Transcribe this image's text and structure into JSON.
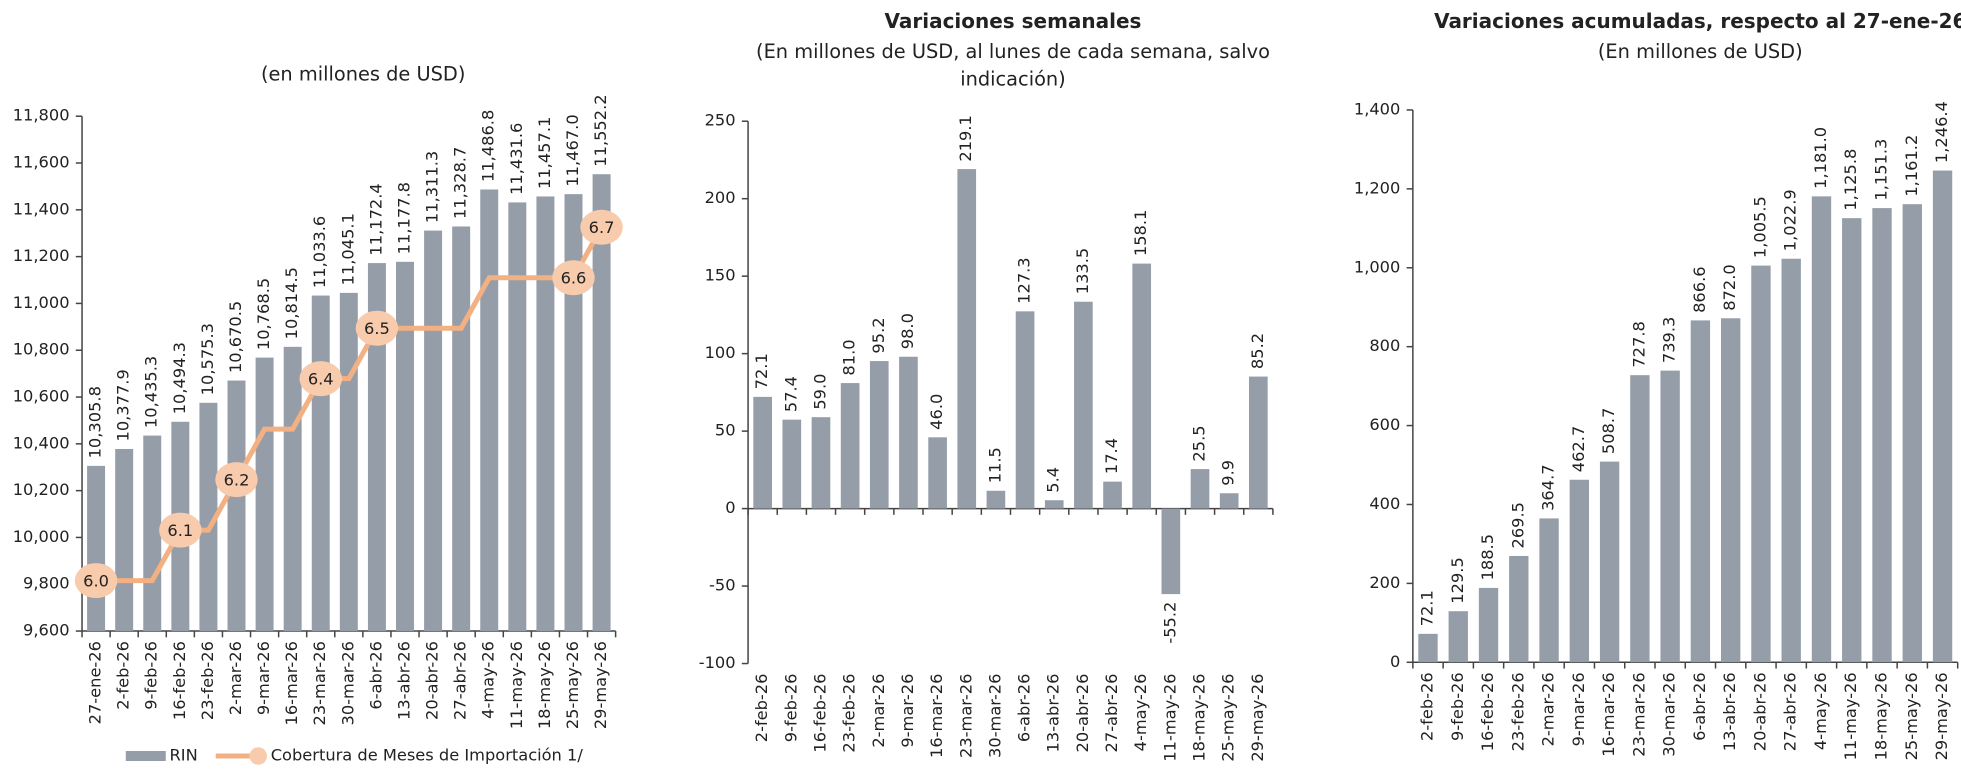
{
  "chart_data": [
    {
      "type": "bar",
      "title": "(en  millones de USD)",
      "categories": [
        "27-ene-26",
        "2-feb-26",
        "9-feb-26",
        "16-feb-26",
        "23-feb-26",
        "2-mar-26",
        "9-mar-26",
        "16-mar-26",
        "23-mar-26",
        "30-mar-26",
        "6-abr-26",
        "13-abr-26",
        "20-abr-26",
        "27-abr-26",
        "4-may-26",
        "11-may-26",
        "18-may-26",
        "25-may-26",
        "29-may-26"
      ],
      "series": [
        {
          "name": "RIN",
          "color": "#959ea8",
          "values": [
            10305.8,
            10377.9,
            10435.3,
            10494.3,
            10575.3,
            10670.5,
            10768.5,
            10814.5,
            11033.6,
            11045.1,
            11172.4,
            11177.8,
            11311.3,
            11328.7,
            11486.8,
            11431.6,
            11457.1,
            11467.0,
            11552.2
          ],
          "value_labels": [
            "10,305.8",
            "10,377.9",
            "10,435.3",
            "10,494.3",
            "10,575.3",
            "10,670.5",
            "10,768.5",
            "10,814.5",
            "11,033.6",
            "11,045.1",
            "11,172.4",
            "11,177.8",
            "11,311.3",
            "11,328.7",
            "11,486.8",
            "11,431.6",
            "11,457.1",
            "11,467.0",
            "11,552.2"
          ]
        },
        {
          "name": "Cobertura de Meses de Importación 1/",
          "type": "line",
          "axis": "y2",
          "color": "#f2b083",
          "marker_color": "#f8cbad",
          "values": [
            6.0,
            6.0,
            6.0,
            6.1,
            6.1,
            6.2,
            6.3,
            6.3,
            6.4,
            6.4,
            6.5,
            6.5,
            6.5,
            6.5,
            6.6,
            6.6,
            6.6,
            6.6,
            6.7
          ],
          "value_labels": [
            "6.0",
            null,
            null,
            "6.1",
            null,
            "6.2",
            null,
            null,
            "6.4",
            null,
            "6.5",
            null,
            null,
            null,
            null,
            null,
            null,
            "6.6",
            "6.7"
          ]
        }
      ],
      "ylim": [
        9600,
        11800
      ],
      "yticks": [
        {
          "value": 9600,
          "label": "9,600"
        },
        {
          "value": 9800,
          "label": "9,800"
        },
        {
          "value": 10000,
          "label": "10,000"
        },
        {
          "value": 10200,
          "label": "10,200"
        },
        {
          "value": 10400,
          "label": "10,400"
        },
        {
          "value": 10600,
          "label": "10,600"
        },
        {
          "value": 10800,
          "label": "10,800"
        },
        {
          "value": 11000,
          "label": "11,000"
        },
        {
          "value": 11200,
          "label": "11,200"
        },
        {
          "value": 11400,
          "label": "11,400"
        },
        {
          "value": 11600,
          "label": "11,600"
        },
        {
          "value": 11800,
          "label": "11,800"
        }
      ],
      "y2lim": [
        5.9,
        6.92
      ],
      "legend": "bottom"
    },
    {
      "type": "bar",
      "title": "Variaciones semanales",
      "subtitle": [
        "(En  millones de USD, al lunes de cada semana, salvo",
        "indicación)"
      ],
      "categories": [
        "2-feb-26",
        "9-feb-26",
        "16-feb-26",
        "23-feb-26",
        "2-mar-26",
        "9-mar-26",
        "16-mar-26",
        "23-mar-26",
        "30-mar-26",
        "6-abr-26",
        "13-abr-26",
        "20-abr-26",
        "27-abr-26",
        "4-may-26",
        "11-may-26",
        "18-may-26",
        "25-may-26",
        "29-may-26"
      ],
      "series": [
        {
          "color": "#959ea8",
          "values": [
            72.1,
            57.4,
            59.0,
            81.0,
            95.2,
            98.0,
            46.0,
            219.1,
            11.5,
            127.3,
            5.4,
            133.5,
            17.4,
            158.1,
            -55.2,
            25.5,
            9.9,
            85.2
          ],
          "value_labels": [
            "72.1",
            "57.4",
            "59.0",
            "81.0",
            "95.2",
            "98.0",
            "46.0",
            "219.1",
            "11.5",
            "127.3",
            "5.4",
            "133.5",
            "17.4",
            "158.1",
            "-55.2",
            "25.5",
            "9.9",
            "85.2"
          ]
        }
      ],
      "ylim": [
        -100,
        250
      ],
      "yticks": [
        -100,
        -50,
        0,
        50,
        100,
        150,
        200,
        250
      ]
    },
    {
      "type": "bar",
      "title": "Variaciones acumuladas, respecto al 27-ene-26",
      "subtitle": [
        "(En  millones de USD)"
      ],
      "categories": [
        "2-feb-26",
        "9-feb-26",
        "16-feb-26",
        "23-feb-26",
        "2-mar-26",
        "9-mar-26",
        "16-mar-26",
        "23-mar-26",
        "30-mar-26",
        "6-abr-26",
        "13-abr-26",
        "20-abr-26",
        "27-abr-26",
        "4-may-26",
        "11-may-26",
        "18-may-26",
        "25-may-26",
        "29-may-26"
      ],
      "series": [
        {
          "color": "#959ea8",
          "values": [
            72.1,
            129.5,
            188.5,
            269.5,
            364.7,
            462.7,
            508.7,
            727.8,
            739.3,
            866.6,
            872.0,
            1005.5,
            1022.9,
            1181.0,
            1125.8,
            1151.3,
            1161.2,
            1246.4
          ],
          "value_labels": [
            "72.1",
            "129.5",
            "188.5",
            "269.5",
            "364.7",
            "462.7",
            "508.7",
            "727.8",
            "739.3",
            "866.6",
            "872.0",
            "1,005.5",
            "1,022.9",
            "1,181.0",
            "1,125.8",
            "1,151.3",
            "1,161.2",
            "1,246.4"
          ]
        }
      ],
      "ylim": [
        0,
        1400
      ],
      "yticks": [
        0,
        200,
        400,
        600,
        800,
        {
          "value": 1000,
          "label": "1,000"
        },
        {
          "value": 1200,
          "label": "1,200"
        },
        {
          "value": 1400,
          "label": "1,400"
        }
      ]
    }
  ]
}
